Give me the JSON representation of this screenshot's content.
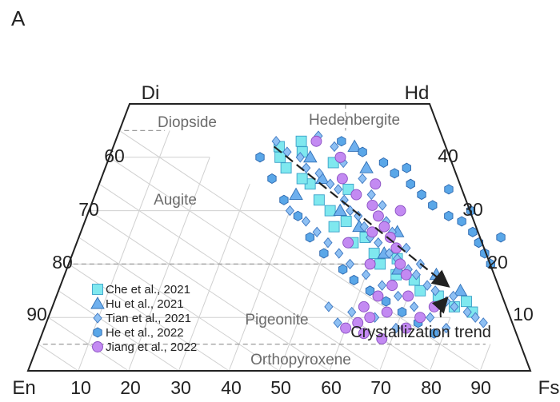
{
  "panel_label": "A",
  "chart_data": {
    "type": "ternary-scatter",
    "corners": {
      "top_left": "Di",
      "top_right": "Hd",
      "bottom_left": "En",
      "bottom_right": "Fs"
    },
    "bottom_axis_ticks": [
      "10",
      "20",
      "30",
      "40",
      "50",
      "60",
      "70",
      "80",
      "90"
    ],
    "left_axis_ticks": [
      "60",
      "70",
      "80",
      "90"
    ],
    "right_axis_ticks": [
      "40",
      "30",
      "20",
      "10"
    ],
    "regions": [
      "Diopside",
      "Hedenbergite",
      "Augite",
      "Pigeonite",
      "Orthopyroxene"
    ],
    "annotation": "Crystallization trend",
    "grid": true,
    "legend_position": "bottom-left",
    "trend_arrow": {
      "from": {
        "Wo": 42,
        "Fs": 32
      },
      "to": {
        "Wo": 16,
        "Fs": 77
      }
    },
    "series": [
      {
        "name": "Che et al., 2021",
        "marker": "square",
        "color": "#7fe8ef",
        "stroke": "#3aa0c8",
        "points": [
          [
            42,
            33
          ],
          [
            40,
            34
          ],
          [
            38,
            36
          ],
          [
            41,
            38
          ],
          [
            35,
            42
          ],
          [
            30,
            48
          ],
          [
            27,
            50
          ],
          [
            24,
            55
          ],
          [
            20,
            62
          ],
          [
            22,
            60
          ],
          [
            18,
            66
          ],
          [
            15,
            72
          ],
          [
            14,
            76
          ],
          [
            12,
            80
          ],
          [
            13,
            82
          ],
          [
            11,
            84
          ],
          [
            28,
            52
          ],
          [
            25,
            57
          ],
          [
            32,
            45
          ],
          [
            36,
            40
          ],
          [
            43,
            37
          ],
          [
            39,
            45
          ],
          [
            34,
            50
          ],
          [
            21,
            65
          ],
          [
            17,
            70
          ]
        ]
      },
      {
        "name": "Hu et al., 2021",
        "marker": "triangle",
        "color": "#6fb0ee",
        "stroke": "#2f6fb5",
        "points": [
          [
            40,
            40
          ],
          [
            36,
            44
          ],
          [
            30,
            50
          ],
          [
            27,
            55
          ],
          [
            22,
            62
          ],
          [
            19,
            66
          ],
          [
            42,
            48
          ],
          [
            26,
            63
          ],
          [
            18,
            74
          ],
          [
            33,
            40
          ],
          [
            15,
            80
          ],
          [
            38,
            52
          ]
        ]
      },
      {
        "name": "Tian et al., 2021",
        "marker": "diamond",
        "color": "#8ec0f3",
        "stroke": "#3e78c2",
        "points": [
          [
            43,
            32
          ],
          [
            41,
            35
          ],
          [
            40,
            38
          ],
          [
            38,
            40
          ],
          [
            37,
            43
          ],
          [
            35,
            46
          ],
          [
            34,
            48
          ],
          [
            32,
            50
          ],
          [
            30,
            52
          ],
          [
            29,
            54
          ],
          [
            27,
            56
          ],
          [
            25,
            58
          ],
          [
            24,
            60
          ],
          [
            22,
            63
          ],
          [
            21,
            65
          ],
          [
            19,
            68
          ],
          [
            18,
            70
          ],
          [
            16,
            73
          ],
          [
            15,
            75
          ],
          [
            13,
            78
          ],
          [
            12,
            80
          ],
          [
            11,
            83
          ],
          [
            10,
            85
          ],
          [
            9,
            87
          ],
          [
            44,
            40
          ],
          [
            42,
            44
          ],
          [
            39,
            47
          ],
          [
            36,
            52
          ],
          [
            33,
            55
          ],
          [
            31,
            58
          ],
          [
            28,
            60
          ],
          [
            26,
            62
          ],
          [
            23,
            66
          ],
          [
            20,
            70
          ],
          [
            17,
            75
          ],
          [
            14,
            79
          ],
          [
            30,
            40
          ],
          [
            28,
            44
          ],
          [
            26,
            47
          ],
          [
            24,
            50
          ],
          [
            22,
            53
          ],
          [
            20,
            56
          ],
          [
            18,
            60
          ],
          [
            16,
            64
          ],
          [
            14,
            68
          ],
          [
            12,
            72
          ],
          [
            10,
            76
          ],
          [
            8,
            80
          ],
          [
            8,
            70
          ],
          [
            10,
            65
          ],
          [
            11,
            60
          ],
          [
            9,
            58
          ],
          [
            12,
            55
          ]
        ]
      },
      {
        "name": "He et al., 2022",
        "marker": "hexagon",
        "color": "#5aa7e8",
        "stroke": "#2b66ad",
        "points": [
          [
            43,
            45
          ],
          [
            41,
            50
          ],
          [
            39,
            55
          ],
          [
            37,
            58
          ],
          [
            35,
            62
          ],
          [
            33,
            65
          ],
          [
            31,
            68
          ],
          [
            29,
            72
          ],
          [
            28,
            75
          ],
          [
            26,
            78
          ],
          [
            24,
            80
          ],
          [
            22,
            82
          ],
          [
            20,
            84
          ],
          [
            40,
            30
          ],
          [
            36,
            34
          ],
          [
            32,
            38
          ],
          [
            29,
            42
          ],
          [
            25,
            46
          ],
          [
            22,
            50
          ],
          [
            19,
            55
          ],
          [
            17,
            58
          ],
          [
            15,
            62
          ],
          [
            13,
            66
          ],
          [
            11,
            70
          ],
          [
            9,
            74
          ],
          [
            7,
            78
          ],
          [
            38,
            60
          ],
          [
            34,
            70
          ],
          [
            30,
            76
          ],
          [
            25,
            84
          ]
        ]
      },
      {
        "name": "Jiang et al., 2022",
        "marker": "circle",
        "color": "#c38af2",
        "stroke": "#8a4fc2",
        "points": [
          [
            43,
            40
          ],
          [
            40,
            46
          ],
          [
            36,
            48
          ],
          [
            33,
            52
          ],
          [
            31,
            56
          ],
          [
            29,
            58
          ],
          [
            27,
            60
          ],
          [
            25,
            62
          ],
          [
            23,
            64
          ],
          [
            20,
            66
          ],
          [
            18,
            68
          ],
          [
            16,
            66
          ],
          [
            14,
            64
          ],
          [
            12,
            62
          ],
          [
            10,
            64
          ],
          [
            11,
            67
          ],
          [
            9,
            62
          ],
          [
            8,
            60
          ],
          [
            7,
            64
          ],
          [
            6,
            68
          ],
          [
            8,
            72
          ],
          [
            10,
            74
          ],
          [
            12,
            76
          ],
          [
            14,
            70
          ],
          [
            24,
            54
          ],
          [
            26,
            58
          ],
          [
            35,
            55
          ],
          [
            30,
            62
          ],
          [
            20,
            60
          ]
        ]
      }
    ]
  }
}
